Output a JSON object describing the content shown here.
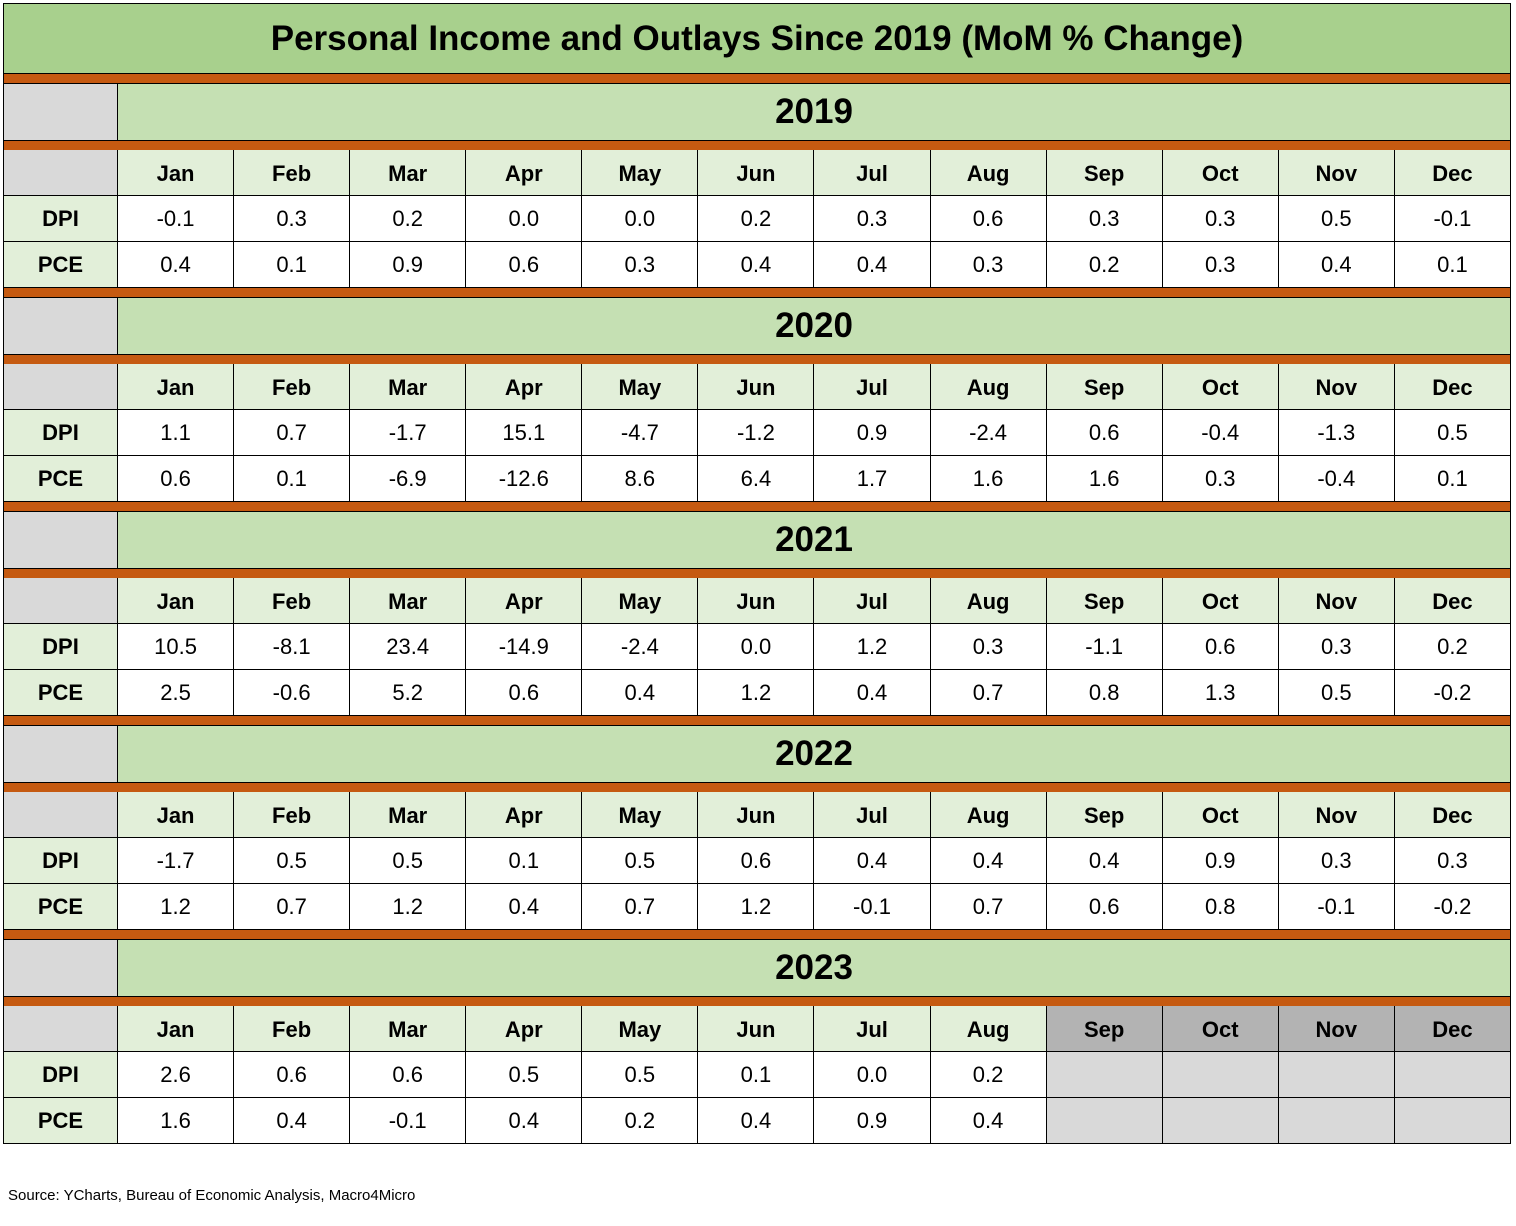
{
  "chart_data": {
    "type": "table",
    "title": "Personal Income and Outlays Since 2019 (MoM % Change)",
    "months": [
      "Jan",
      "Feb",
      "Mar",
      "Apr",
      "May",
      "Jun",
      "Jul",
      "Aug",
      "Sep",
      "Oct",
      "Nov",
      "Dec"
    ],
    "row_labels": [
      "DPI",
      "PCE"
    ],
    "colors": {
      "title_bg": "#a8d08d",
      "year_bg": "#c5e0b3",
      "header_bg": "#e2efd9",
      "separator": "#c55a11",
      "empty": "#d9d9d9",
      "future_header": "#b3b3b3"
    },
    "years": [
      {
        "year": "2019",
        "DPI": [
          "-0.1",
          "0.3",
          "0.2",
          "0.0",
          "0.0",
          "0.2",
          "0.3",
          "0.6",
          "0.3",
          "0.3",
          "0.5",
          "-0.1"
        ],
        "PCE": [
          "0.4",
          "0.1",
          "0.9",
          "0.6",
          "0.3",
          "0.4",
          "0.4",
          "0.3",
          "0.2",
          "0.3",
          "0.4",
          "0.1"
        ]
      },
      {
        "year": "2020",
        "DPI": [
          "1.1",
          "0.7",
          "-1.7",
          "15.1",
          "-4.7",
          "-1.2",
          "0.9",
          "-2.4",
          "0.6",
          "-0.4",
          "-1.3",
          "0.5"
        ],
        "PCE": [
          "0.6",
          "0.1",
          "-6.9",
          "-12.6",
          "8.6",
          "6.4",
          "1.7",
          "1.6",
          "1.6",
          "0.3",
          "-0.4",
          "0.1"
        ]
      },
      {
        "year": "2021",
        "DPI": [
          "10.5",
          "-8.1",
          "23.4",
          "-14.9",
          "-2.4",
          "0.0",
          "1.2",
          "0.3",
          "-1.1",
          "0.6",
          "0.3",
          "0.2"
        ],
        "PCE": [
          "2.5",
          "-0.6",
          "5.2",
          "0.6",
          "0.4",
          "1.2",
          "0.4",
          "0.7",
          "0.8",
          "1.3",
          "0.5",
          "-0.2"
        ]
      },
      {
        "year": "2022",
        "DPI": [
          "-1.7",
          "0.5",
          "0.5",
          "0.1",
          "0.5",
          "0.6",
          "0.4",
          "0.4",
          "0.4",
          "0.9",
          "0.3",
          "0.3"
        ],
        "PCE": [
          "1.2",
          "0.7",
          "1.2",
          "0.4",
          "0.7",
          "1.2",
          "-0.1",
          "0.7",
          "0.6",
          "0.8",
          "-0.1",
          "-0.2"
        ]
      },
      {
        "year": "2023",
        "DPI": [
          "2.6",
          "0.6",
          "0.6",
          "0.5",
          "0.5",
          "0.1",
          "0.0",
          "0.2",
          null,
          null,
          null,
          null
        ],
        "PCE": [
          "1.6",
          "0.4",
          "-0.1",
          "0.4",
          "0.2",
          "0.4",
          "0.9",
          "0.4",
          null,
          null,
          null,
          null
        ]
      }
    ]
  },
  "source": "Source: YCharts, Bureau of Economic Analysis, Macro4Micro"
}
